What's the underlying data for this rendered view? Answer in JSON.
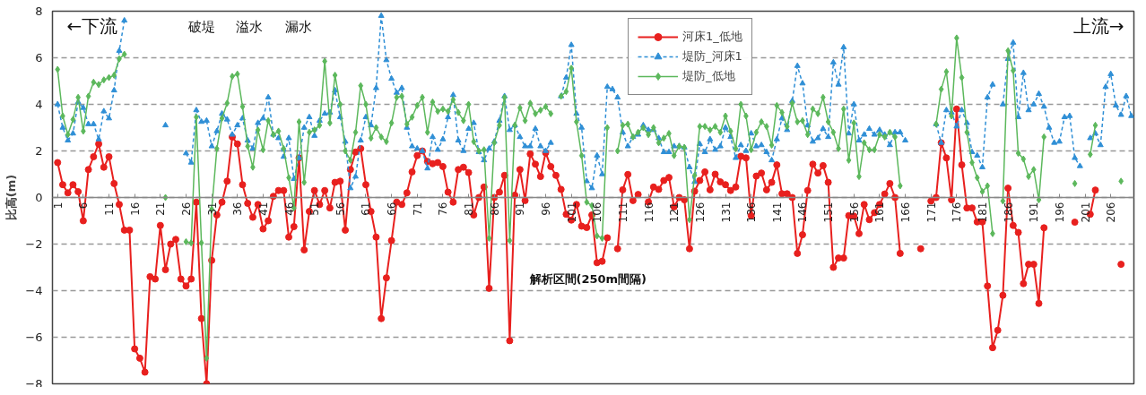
{
  "chart_data": {
    "type": "line",
    "ylabel": "比高(m)",
    "ylim": [
      -8,
      8
    ],
    "yticks": [
      -8,
      -6,
      -4,
      -2,
      0,
      2,
      4,
      6,
      8
    ],
    "xlim": [
      0,
      210.5
    ],
    "xticks": [
      1,
      6,
      11,
      16,
      21,
      26,
      31,
      36,
      41,
      46,
      51,
      56,
      61,
      66,
      71,
      76,
      81,
      86,
      91,
      96,
      101,
      106,
      111,
      116,
      121,
      126,
      131,
      136,
      141,
      146,
      151,
      156,
      161,
      166,
      171,
      176,
      181,
      186,
      191,
      196,
      201,
      206
    ],
    "x": [
      1,
      2,
      3,
      4,
      5,
      6,
      7,
      8,
      9,
      10,
      11,
      12,
      13,
      14,
      15,
      16,
      17,
      18,
      19,
      20,
      21,
      22,
      23,
      24,
      25,
      26,
      27,
      28,
      29,
      30,
      31,
      32,
      33,
      34,
      35,
      36,
      37,
      38,
      39,
      40,
      41,
      42,
      43,
      44,
      45,
      46,
      47,
      48,
      49,
      50,
      51,
      52,
      53,
      54,
      55,
      56,
      57,
      58,
      59,
      60,
      61,
      62,
      63,
      64,
      65,
      66,
      67,
      68,
      69,
      70,
      71,
      72,
      73,
      74,
      75,
      76,
      77,
      78,
      79,
      80,
      81,
      82,
      83,
      84,
      85,
      86,
      87,
      88,
      89,
      90,
      91,
      92,
      93,
      94,
      95,
      96,
      97,
      98,
      99,
      100,
      101,
      102,
      103,
      104,
      105,
      106,
      107,
      108,
      109,
      110,
      111,
      112,
      113,
      114,
      115,
      116,
      117,
      118,
      119,
      120,
      121,
      122,
      123,
      124,
      125,
      126,
      127,
      128,
      129,
      130,
      131,
      132,
      133,
      134,
      135,
      136,
      137,
      138,
      139,
      140,
      141,
      142,
      143,
      144,
      145,
      146,
      147,
      148,
      149,
      150,
      151,
      152,
      153,
      154,
      155,
      156,
      157,
      158,
      159,
      160,
      161,
      162,
      163,
      164,
      165,
      166,
      167,
      168,
      169,
      170,
      171,
      172,
      173,
      174,
      175,
      176,
      177,
      178,
      179,
      180,
      181,
      182,
      183,
      184,
      185,
      186,
      187,
      188,
      189,
      190,
      191,
      192,
      193,
      194,
      195,
      196,
      197,
      198,
      199,
      200,
      201,
      202,
      203,
      204,
      205,
      206,
      207,
      208,
      209,
      210
    ],
    "grid": "y",
    "legend": "top",
    "series": [
      {
        "name": "河床1_低地",
        "color": "#e8201e",
        "marker": "circle",
        "line_style": "solid",
        "values": [
          1.5,
          0.55,
          0.2,
          0.55,
          0.25,
          -1.0,
          1.2,
          1.75,
          2.3,
          1.3,
          1.75,
          0.6,
          -0.3,
          -1.4,
          -1.4,
          -6.5,
          -6.9,
          -7.5,
          -3.4,
          -3.5,
          -1.2,
          -3.1,
          -2.0,
          -1.8,
          -3.5,
          -3.8,
          -3.5,
          -0.2,
          -5.2,
          -8.0,
          -2.7,
          -0.75,
          -0.2,
          0.7,
          2.6,
          2.3,
          0.55,
          -0.25,
          -0.85,
          -0.3,
          -1.35,
          -1.0,
          0.05,
          0.3,
          0.3,
          -1.7,
          -1.25,
          1.7,
          -2.25,
          -0.6,
          0.3,
          -0.3,
          0.3,
          -0.45,
          0.65,
          0.7,
          -1.4,
          1.2,
          1.95,
          2.1,
          0.55,
          -0.6,
          -1.7,
          -5.2,
          -3.45,
          -1.85,
          -0.2,
          -0.3,
          0.2,
          1.1,
          1.8,
          2.0,
          1.55,
          1.45,
          1.5,
          1.33,
          0.23,
          -0.2,
          1.2,
          1.3,
          1.07,
          -0.75,
          0.0,
          0.45,
          -3.9,
          0.0,
          0.23,
          0.95,
          -6.15,
          0.1,
          1.2,
          -0.13,
          1.87,
          1.43,
          0.9,
          1.92,
          1.33,
          0.95,
          0.35,
          -0.72,
          -0.97,
          -0.3,
          -1.23,
          -1.29,
          -0.75,
          -2.8,
          -2.74,
          -1.73,
          null,
          -2.2,
          0.33,
          0.99,
          -0.13,
          0.13,
          null,
          -0.19,
          0.45,
          0.35,
          0.73,
          0.86,
          -0.4,
          0.0,
          -0.1,
          -2.2,
          0.27,
          0.73,
          1.1,
          0.33,
          1.0,
          0.67,
          0.55,
          0.3,
          0.45,
          1.77,
          1.7,
          -0.78,
          0.92,
          1.05,
          0.33,
          0.65,
          1.4,
          0.16,
          0.16,
          0.0,
          -2.4,
          -1.6,
          0.3,
          1.43,
          1.05,
          1.37,
          0.65,
          -3.0,
          -2.6,
          -2.6,
          -0.78,
          -0.8,
          -1.55,
          -0.3,
          -0.95,
          -0.65,
          -0.3,
          0.15,
          0.6,
          0.0,
          -2.4,
          null,
          null,
          null,
          -2.2,
          null,
          -0.15,
          0.0,
          2.35,
          1.7,
          -0.1,
          3.8,
          1.4,
          -0.45,
          -0.45,
          -1.05,
          -1.05,
          -3.8,
          -6.45,
          -5.7,
          -4.2,
          0.4,
          -1.2,
          -1.5,
          -3.7,
          -2.87,
          -2.87,
          -4.55,
          -1.3,
          null,
          null,
          null,
          null,
          null,
          -1.06,
          null,
          null,
          -0.72,
          0.32,
          null,
          null,
          null,
          null,
          -2.87,
          null,
          null
        ]
      },
      {
        "name": "堤防_河床1",
        "color": "#2f8fd6",
        "marker": "triangle",
        "line_style": "dashed",
        "values": [
          4.0,
          3.0,
          2.45,
          2.75,
          4.1,
          3.85,
          3.15,
          3.15,
          2.5,
          3.7,
          3.4,
          4.6,
          6.3,
          7.6,
          null,
          null,
          null,
          null,
          null,
          null,
          null,
          3.1,
          null,
          null,
          null,
          1.9,
          1.5,
          3.75,
          3.25,
          3.3,
          2.2,
          2.85,
          3.6,
          3.35,
          2.7,
          3.1,
          3.4,
          2.45,
          2.1,
          3.2,
          3.4,
          4.3,
          2.7,
          2.55,
          1.75,
          2.55,
          0.8,
          1.7,
          3.0,
          3.45,
          2.65,
          3.3,
          3.6,
          3.65,
          4.6,
          3.45,
          2.4,
          0.4,
          0.9,
          2.45,
          3.45,
          3.1,
          4.7,
          7.8,
          5.9,
          5.1,
          4.5,
          4.7,
          3.0,
          2.2,
          2.1,
          2.0,
          1.25,
          2.6,
          2.05,
          2.5,
          3.45,
          4.4,
          2.45,
          2.0,
          2.95,
          3.2,
          1.95,
          1.6,
          2.1,
          2.4,
          3.3,
          4.35,
          2.9,
          3.1,
          2.6,
          2.2,
          2.2,
          2.95,
          2.2,
          2.0,
          2.35,
          null,
          4.35,
          5.15,
          6.55,
          3.6,
          3.0,
          0.7,
          0.4,
          1.8,
          1.0,
          4.75,
          4.65,
          4.3,
          2.8,
          2.2,
          2.6,
          2.7,
          3.1,
          2.9,
          2.9,
          2.55,
          1.95,
          1.95,
          2.2,
          2.2,
          2.15,
          1.3,
          0.67,
          2.3,
          1.95,
          2.5,
          2.05,
          2.2,
          3.0,
          2.6,
          1.7,
          2.25,
          2.0,
          2.75,
          2.2,
          2.25,
          1.95,
          1.6,
          2.5,
          3.4,
          2.9,
          4.15,
          5.65,
          4.9,
          3.1,
          2.4,
          2.55,
          2.95,
          2.6,
          5.8,
          4.85,
          6.45,
          2.75,
          4.0,
          2.45,
          2.7,
          2.95,
          2.7,
          2.9,
          2.7,
          2.25,
          2.8,
          2.8,
          2.45,
          null,
          null,
          null,
          null,
          null,
          3.15,
          2.35,
          3.75,
          3.65,
          3.05,
          3.75,
          3.2,
          1.95,
          1.8,
          1.3,
          4.3,
          4.85,
          null,
          4.0,
          5.95,
          6.65,
          3.45,
          5.35,
          3.75,
          4.0,
          4.45,
          3.9,
          3.0,
          2.35,
          2.4,
          3.45,
          3.5,
          1.7,
          1.35,
          null,
          2.55,
          2.75,
          2.25,
          4.75,
          5.3,
          3.95,
          3.55,
          4.35,
          3.5
        ]
      },
      {
        "name": "堤防_低地",
        "color": "#5cb85c",
        "marker": "diamond",
        "line_style": "solid",
        "values": [
          5.5,
          3.5,
          2.7,
          3.35,
          4.3,
          2.85,
          4.35,
          4.95,
          4.85,
          5.05,
          5.15,
          5.25,
          5.95,
          6.15,
          null,
          null,
          null,
          null,
          null,
          null,
          null,
          0.0,
          null,
          null,
          null,
          -1.9,
          -1.95,
          3.45,
          -1.95,
          -6.9,
          -0.5,
          2.1,
          3.4,
          4.05,
          5.2,
          5.3,
          3.9,
          2.2,
          1.3,
          2.9,
          2.05,
          3.3,
          2.7,
          2.85,
          2.1,
          0.85,
          -0.45,
          3.25,
          0.65,
          2.8,
          2.9,
          3.1,
          5.85,
          3.2,
          5.25,
          4.0,
          2.0,
          1.6,
          2.8,
          4.8,
          4.0,
          2.55,
          3.0,
          2.6,
          2.4,
          3.2,
          4.3,
          4.35,
          3.15,
          3.45,
          3.95,
          4.3,
          2.8,
          4.1,
          3.7,
          3.8,
          3.7,
          4.2,
          3.65,
          3.3,
          4.0,
          2.4,
          2.0,
          2.05,
          -1.75,
          2.35,
          3.1,
          4.3,
          -1.85,
          3.1,
          3.85,
          3.3,
          4.05,
          3.6,
          3.75,
          3.9,
          3.6,
          null,
          4.35,
          4.55,
          5.55,
          3.25,
          1.8,
          -0.2,
          -0.35,
          -1.65,
          -1.75,
          3.0,
          null,
          2.0,
          3.1,
          3.15,
          2.6,
          2.8,
          3.0,
          2.7,
          3.0,
          2.35,
          2.55,
          2.75,
          1.8,
          2.2,
          2.15,
          -0.95,
          0.95,
          3.05,
          3.05,
          2.9,
          3.05,
          2.8,
          3.5,
          2.85,
          2.1,
          4.0,
          3.5,
          2.05,
          2.8,
          3.25,
          3.05,
          2.25,
          3.95,
          3.65,
          3.05,
          4.05,
          3.25,
          3.3,
          2.7,
          3.8,
          3.6,
          4.3,
          3.25,
          2.8,
          2.1,
          3.8,
          1.6,
          3.2,
          0.9,
          2.35,
          2.05,
          2.05,
          2.7,
          2.6,
          2.8,
          2.6,
          0.5,
          null,
          null,
          null,
          null,
          null,
          null,
          3.15,
          4.65,
          5.4,
          3.5,
          6.85,
          5.15,
          2.8,
          1.5,
          0.85,
          0.25,
          0.5,
          -1.55,
          null,
          -0.15,
          6.3,
          5.45,
          1.9,
          1.65,
          0.9,
          1.2,
          -0.1,
          2.6,
          null,
          null,
          null,
          null,
          null,
          0.6,
          null,
          null,
          1.85,
          3.1,
          null,
          null,
          null,
          null,
          0.7,
          null,
          null
        ]
      }
    ],
    "annotations": [
      "←下流",
      "上流→",
      "破堤",
      "溢水",
      "漏水",
      "解析区間(250m間隔)"
    ]
  }
}
